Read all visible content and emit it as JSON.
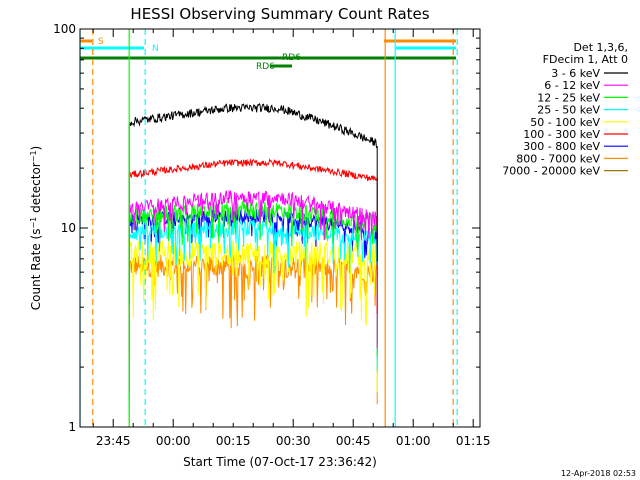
{
  "chart_data": {
    "type": "line",
    "title": "HESSI Observing Summary Count Rates",
    "xlabel": "Start Time (07-Oct-17 23:36:42)",
    "ylabel": "Count Rate (s⁻¹ detector⁻¹)",
    "ylabel_main": "Count Rate (s",
    "ylabel_sup1": "−1",
    "ylabel_mid": " detector",
    "ylabel_sup2": "−1",
    "ylabel_end": ")",
    "yscale": "log",
    "ylim": [
      1,
      100
    ],
    "xlim_minutes_from_start": [
      0,
      100
    ],
    "x_tick_labels": [
      "23:45",
      "00:00",
      "00:15",
      "00:30",
      "00:45",
      "01:00",
      "01:15"
    ],
    "x_tick_minutes_from_start": [
      8.3,
      23.3,
      38.3,
      53.3,
      68.3,
      83.3,
      98.3
    ],
    "y_tick_labels": [
      "1",
      "10",
      "100"
    ],
    "y_tick_values": [
      1,
      10,
      100
    ],
    "legend_header": [
      "Det 1,3,6,",
      "FDecim 1, Att 0"
    ],
    "legend_position": "right",
    "series": [
      {
        "name": "3 - 6 keV",
        "color": "#000000",
        "level": 34,
        "rise": 1.18,
        "fall": 0.78,
        "noise": 0.05
      },
      {
        "name": "6 - 12 keV",
        "color": "#ff00ff",
        "level": 12.5,
        "rise": 1.15,
        "fall": 0.9,
        "noise": 0.08
      },
      {
        "name": "12 - 25 keV",
        "color": "#00ff00",
        "level": 11.5,
        "rise": 1.08,
        "fall": 0.93,
        "noise": 0.1
      },
      {
        "name": "25 - 50 keV",
        "color": "#00ffff",
        "level": 9.5,
        "rise": 1.05,
        "fall": 0.95,
        "noise": 0.1
      },
      {
        "name": "50 - 100 keV",
        "color": "#ffff00",
        "level": 7.5,
        "rise": 1.0,
        "fall": 1.0,
        "noise": 0.15
      },
      {
        "name": "100 - 300 keV",
        "color": "#ff0000",
        "level": 18.5,
        "rise": 1.15,
        "fall": 0.95,
        "noise": 0.04
      },
      {
        "name": "300 - 800 keV",
        "color": "#0000ff",
        "level": 11,
        "rise": 1.05,
        "fall": 0.88,
        "noise": 0.08
      },
      {
        "name": "800 - 7000 keV",
        "color": "#ff8c00",
        "level": 6.5,
        "rise": 1.0,
        "fall": 0.95,
        "noise": 0.13
      },
      {
        "name": "7000 - 20000 keV",
        "color": "#a07800",
        "level": null,
        "rise": 1.0,
        "fall": 1.0,
        "noise": 0
      }
    ],
    "data_window_minutes": [
      12.3,
      74.3
    ],
    "annotations": [
      {
        "label": "S",
        "color": "#ff8c00"
      },
      {
        "label": "N",
        "color": "#00ffff"
      },
      {
        "label": "RD6",
        "color": "#008000"
      },
      {
        "label": "RD6",
        "color": "#008000"
      }
    ],
    "orange_bar_spans": [
      [
        0,
        3
      ],
      [
        76,
        94
      ]
    ],
    "cyan_bar_spans": [
      [
        0,
        16
      ],
      [
        79,
        94
      ]
    ],
    "green_bar_span": [
      0,
      94
    ],
    "rd6_small_bar_span": [
      47.5,
      53
    ],
    "solid_vertical_lines": [
      {
        "x": 0,
        "color": "#00ffff"
      },
      {
        "x": 12.3,
        "color": "#00ff00"
      },
      {
        "x": 76.3,
        "color": "#ff8c00"
      },
      {
        "x": 78.8,
        "color": "#00ffff"
      }
    ],
    "dashed_vertical_lines": [
      {
        "x": 3.2,
        "color": "#ff8c00"
      },
      {
        "x": 16.3,
        "color": "#00ffff"
      },
      {
        "x": 93.3,
        "color": "#ff8c00"
      },
      {
        "x": 94.3,
        "color": "#00ffff"
      }
    ],
    "grid": false
  },
  "footer_timestamp": "12-Apr-2018 02:53"
}
